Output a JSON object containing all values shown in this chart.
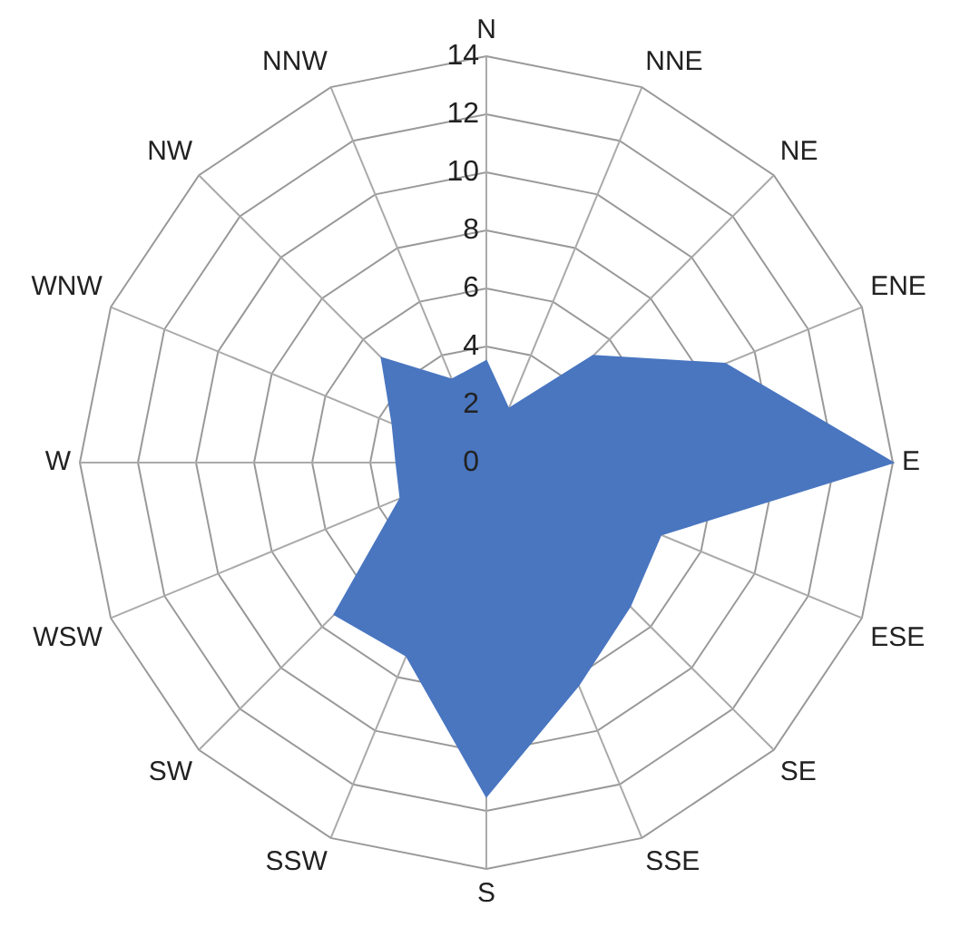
{
  "chart_data": {
    "type": "radar",
    "categories": [
      "N",
      "NNE",
      "NE",
      "ENE",
      "E",
      "ESE",
      "SE",
      "SSE",
      "S",
      "SSW",
      "SW",
      "WSW",
      "W",
      "WNW",
      "NW",
      "NNW"
    ],
    "series": [
      {
        "color": "#4a76c0",
        "values": [
          3.5,
          2,
          5.2,
          8.9,
          14,
          6.5,
          7,
          8.3,
          11.5,
          7.2,
          7.4,
          3.2,
          3.1,
          3.5,
          5.1,
          3.1
        ]
      }
    ],
    "ylim": [
      0,
      14
    ],
    "yticks": [
      0,
      2,
      4,
      6,
      8,
      10,
      12,
      14
    ],
    "grid": true,
    "legend": false
  }
}
